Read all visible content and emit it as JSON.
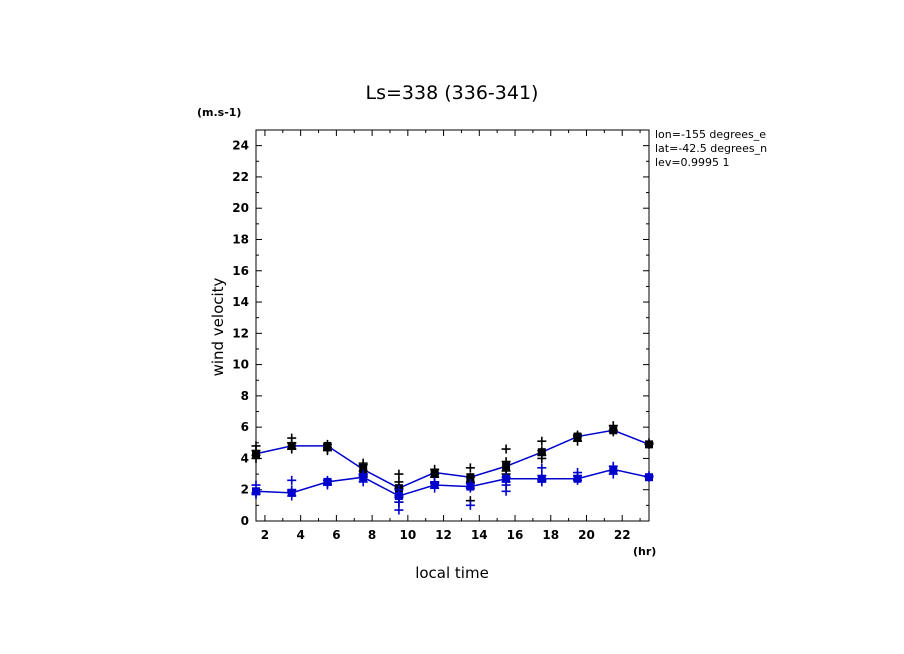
{
  "chart_data": {
    "type": "line",
    "title": "Ls=338 (336-341)",
    "xlabel": "local time",
    "ylabel": "wind velocity",
    "x_unit": "(hr)",
    "y_unit": "(m.s-1)",
    "xlim": [
      1.5,
      23.5
    ],
    "ylim": [
      0,
      25
    ],
    "x_ticks": [
      2,
      4,
      6,
      8,
      10,
      12,
      14,
      16,
      18,
      20,
      22
    ],
    "y_ticks": [
      0,
      2,
      4,
      6,
      8,
      10,
      12,
      14,
      16,
      18,
      20,
      22,
      24
    ],
    "info": [
      "lon=-155 degrees_e",
      "lat=-42.5 degrees_n",
      "lev=0.9995 1"
    ],
    "x": [
      1.5,
      3.5,
      5.5,
      7.5,
      9.5,
      11.5,
      13.5,
      15.5,
      17.5,
      19.5,
      21.5,
      23.5
    ],
    "series": [
      {
        "color": "#0000cc",
        "marker_color": "#000000",
        "values": [
          4.3,
          4.8,
          4.8,
          3.3,
          2.1,
          3.1,
          2.8,
          3.5,
          4.4,
          5.4,
          5.8,
          4.9
        ],
        "scatter": [
          [
            4.5,
            4.2,
            4.8,
            4.0
          ],
          [
            4.6,
            5.0,
            5.3,
            5.0,
            4.6
          ],
          [
            4.6,
            4.9,
            4.7,
            4.5
          ],
          [
            3.6,
            3.2,
            3.0,
            3.7,
            2.8
          ],
          [
            1.5,
            2.1,
            3.0,
            2.5,
            1.2
          ],
          [
            3.3,
            2.8,
            2.5,
            3.0
          ],
          [
            3.4,
            2.8,
            1.3,
            2.5
          ],
          [
            4.6,
            3.8,
            3.2,
            3.0
          ],
          [
            5.1,
            4.5,
            4.0,
            4.2
          ],
          [
            5.4,
            5.1,
            5.5
          ],
          [
            6.1,
            5.7,
            5.8
          ],
          [
            4.9,
            5.0
          ]
        ]
      },
      {
        "color": "#0000cc",
        "marker_color": "#0000cc",
        "values": [
          1.9,
          1.8,
          2.5,
          2.8,
          1.6,
          2.3,
          2.2,
          2.7,
          2.7,
          2.7,
          3.3,
          2.8
        ],
        "scatter": [
          [
            2.3,
            1.8,
            1.7
          ],
          [
            2.6,
            1.6,
            1.9,
            2.0
          ],
          [
            2.6,
            2.3,
            2.4
          ],
          [
            2.5,
            2.9,
            3.0
          ],
          [
            1.2,
            0.7,
            2.0,
            1.6
          ],
          [
            2.1,
            2.4,
            2.5
          ],
          [
            2.1,
            1.0,
            2.4
          ],
          [
            2.5,
            1.9,
            2.3,
            2.8
          ],
          [
            3.4,
            2.5,
            2.9,
            2.6
          ],
          [
            3.1,
            2.6,
            2.9
          ],
          [
            3.5,
            3.0,
            3.2
          ],
          [
            2.9,
            2.8
          ]
        ]
      }
    ]
  }
}
